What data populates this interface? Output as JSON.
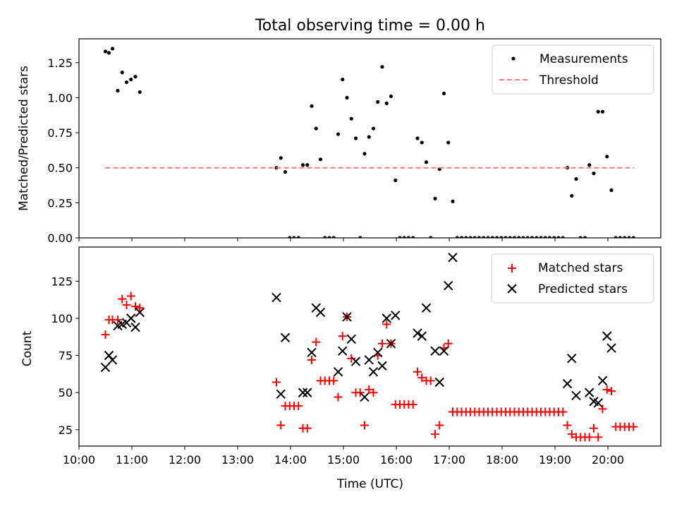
{
  "figure": {
    "title": "Total observing time = 0.00 h"
  },
  "chart_data": [
    {
      "type": "scatter",
      "panel": "top",
      "ylabel": "Matched/Predicted stars",
      "xlabel": "",
      "xlim": [
        "10:00",
        "21:00"
      ],
      "ylim": [
        0,
        1.42
      ],
      "yticks": [
        0.0,
        0.25,
        0.5,
        0.75,
        1.0,
        1.25
      ],
      "ytick_labels": [
        "0.00",
        "0.25",
        "0.50",
        "0.75",
        "1.00",
        "1.25"
      ],
      "legend": {
        "placement": "upper-right",
        "entries": [
          "Measurements",
          "Threshold"
        ]
      },
      "series": [
        {
          "name": "Measurements",
          "marker": "dot",
          "color": "#000000",
          "x": [
            "10:30",
            "10:34",
            "10:38",
            "10:44",
            "10:49",
            "10:54",
            "10:59",
            "11:04",
            "11:09",
            "13:44",
            "13:49",
            "13:54",
            "13:59",
            "14:04",
            "14:09",
            "14:14",
            "14:19",
            "14:24",
            "14:29",
            "14:34",
            "14:39",
            "14:44",
            "14:49",
            "14:54",
            "14:59",
            "15:04",
            "15:09",
            "15:14",
            "15:19",
            "15:24",
            "15:29",
            "15:34",
            "15:39",
            "15:44",
            "15:49",
            "15:54",
            "15:59",
            "16:04",
            "16:09",
            "16:14",
            "16:19",
            "16:24",
            "16:29",
            "16:34",
            "16:39",
            "16:44",
            "16:49",
            "16:54",
            "16:59",
            "17:04",
            "17:09",
            "17:14",
            "17:19",
            "17:24",
            "17:29",
            "17:34",
            "17:39",
            "17:44",
            "17:49",
            "17:54",
            "17:59",
            "18:04",
            "18:09",
            "18:14",
            "18:19",
            "18:24",
            "18:29",
            "18:34",
            "18:39",
            "18:44",
            "18:49",
            "18:54",
            "18:59",
            "19:04",
            "19:09",
            "19:14",
            "19:19",
            "19:24",
            "19:29",
            "19:34",
            "19:39",
            "19:44",
            "19:49",
            "19:54",
            "19:59",
            "20:04",
            "20:09",
            "20:14",
            "20:19",
            "20:24",
            "20:29"
          ],
          "y": [
            1.33,
            1.32,
            1.35,
            1.05,
            1.18,
            1.11,
            1.13,
            1.15,
            1.04,
            0.5,
            0.57,
            0.47,
            0.0,
            0.0,
            0.0,
            0.52,
            0.52,
            0.94,
            0.78,
            0.56,
            0.0,
            0.0,
            0.0,
            0.74,
            1.13,
            1.0,
            0.85,
            0.71,
            0.0,
            0.6,
            0.72,
            0.78,
            0.97,
            1.22,
            0.96,
            1.01,
            0.41,
            0.0,
            0.0,
            0.0,
            0.0,
            0.71,
            0.68,
            0.54,
            0.0,
            0.28,
            0.49,
            1.03,
            0.68,
            0.26,
            0.0,
            0.0,
            0.0,
            0.0,
            0.0,
            0.0,
            0.0,
            0.0,
            0.0,
            0.0,
            0.0,
            0.0,
            0.0,
            0.0,
            0.0,
            0.0,
            0.0,
            0.0,
            0.0,
            0.0,
            0.0,
            0.0,
            0.0,
            0.0,
            0.0,
            0.5,
            0.3,
            0.42,
            0.0,
            0.0,
            0.52,
            0.46,
            0.9,
            0.9,
            0.58,
            0.34,
            0.0,
            0.0,
            0.0,
            0.0,
            0.0
          ]
        },
        {
          "name": "Threshold",
          "marker": "dashed-line",
          "color": "#ff7777",
          "x": [
            "10:30",
            "20:30"
          ],
          "y": [
            0.5,
            0.5
          ]
        }
      ]
    },
    {
      "type": "scatter",
      "panel": "bottom",
      "ylabel": "Count",
      "xlabel": "Time (UTC)",
      "xlim": [
        "10:00",
        "21:00"
      ],
      "ylim": [
        14,
        148
      ],
      "xticks": [
        "10:00",
        "11:00",
        "12:00",
        "13:00",
        "14:00",
        "15:00",
        "16:00",
        "17:00",
        "18:00",
        "19:00",
        "20:00"
      ],
      "yticks": [
        25,
        50,
        75,
        100,
        125
      ],
      "legend": {
        "placement": "upper-right",
        "entries": [
          "Matched stars",
          "Predicted stars"
        ]
      },
      "series": [
        {
          "name": "Matched stars",
          "marker": "plus",
          "color": "#ff0000",
          "x": [
            "10:30",
            "10:34",
            "10:38",
            "10:44",
            "10:49",
            "10:54",
            "10:59",
            "11:04",
            "11:09",
            "13:44",
            "13:49",
            "13:54",
            "13:59",
            "14:04",
            "14:09",
            "14:14",
            "14:19",
            "14:24",
            "14:29",
            "14:34",
            "14:39",
            "14:44",
            "14:49",
            "14:54",
            "14:59",
            "15:04",
            "15:09",
            "15:14",
            "15:19",
            "15:24",
            "15:29",
            "15:34",
            "15:39",
            "15:44",
            "15:49",
            "15:54",
            "15:59",
            "16:04",
            "16:09",
            "16:14",
            "16:19",
            "16:24",
            "16:29",
            "16:34",
            "16:39",
            "16:44",
            "16:49",
            "16:54",
            "16:59",
            "17:04",
            "17:09",
            "17:14",
            "17:19",
            "17:24",
            "17:29",
            "17:34",
            "17:39",
            "17:44",
            "17:49",
            "17:54",
            "17:59",
            "18:04",
            "18:09",
            "18:14",
            "18:19",
            "18:24",
            "18:29",
            "18:34",
            "18:39",
            "18:44",
            "18:49",
            "18:54",
            "18:59",
            "19:04",
            "19:09",
            "19:14",
            "19:19",
            "19:24",
            "19:29",
            "19:34",
            "19:39",
            "19:44",
            "19:49",
            "19:54",
            "19:59",
            "20:04",
            "20:09",
            "20:14",
            "20:19",
            "20:24",
            "20:29"
          ],
          "y": [
            89,
            99,
            99,
            99,
            113,
            109,
            115,
            108,
            107,
            57,
            28,
            41,
            41,
            41,
            41,
            26,
            26,
            72,
            84,
            58,
            58,
            58,
            58,
            47,
            88,
            101,
            73,
            50,
            50,
            28,
            52,
            50,
            75,
            83,
            96,
            83,
            42,
            42,
            42,
            42,
            42,
            64,
            60,
            58,
            58,
            22,
            28,
            80,
            83,
            37,
            37,
            37,
            37,
            37,
            37,
            37,
            37,
            37,
            37,
            37,
            37,
            37,
            37,
            37,
            37,
            37,
            37,
            37,
            37,
            37,
            37,
            37,
            37,
            37,
            37,
            28,
            22,
            20,
            20,
            20,
            20,
            26,
            20,
            39,
            52,
            51,
            27,
            27,
            27,
            27,
            27
          ]
        },
        {
          "name": "Predicted stars",
          "marker": "x",
          "color": "#000000",
          "x": [
            "10:30",
            "10:34",
            "10:38",
            "10:44",
            "10:49",
            "10:54",
            "10:59",
            "11:04",
            "11:09",
            "13:44",
            "13:49",
            "13:54",
            "14:14",
            "14:19",
            "14:24",
            "14:29",
            "14:34",
            "14:54",
            "14:59",
            "15:04",
            "15:09",
            "15:14",
            "15:24",
            "15:29",
            "15:34",
            "15:39",
            "15:44",
            "15:49",
            "15:54",
            "15:59",
            "16:24",
            "16:29",
            "16:34",
            "16:44",
            "16:49",
            "16:54",
            "16:59",
            "17:04",
            "19:14",
            "19:19",
            "19:24",
            "19:39",
            "19:44",
            "19:49",
            "19:54",
            "19:59",
            "20:04"
          ],
          "y": [
            67,
            75,
            72,
            95,
            96,
            97,
            100,
            94,
            104,
            114,
            49,
            87,
            50,
            50,
            77,
            107,
            104,
            64,
            78,
            101,
            86,
            71,
            47,
            72,
            64,
            77,
            68,
            100,
            83,
            102,
            90,
            88,
            107,
            78,
            57,
            78,
            122,
            141,
            56,
            73,
            48,
            50,
            44,
            43,
            58,
            88,
            80
          ]
        }
      ]
    }
  ]
}
